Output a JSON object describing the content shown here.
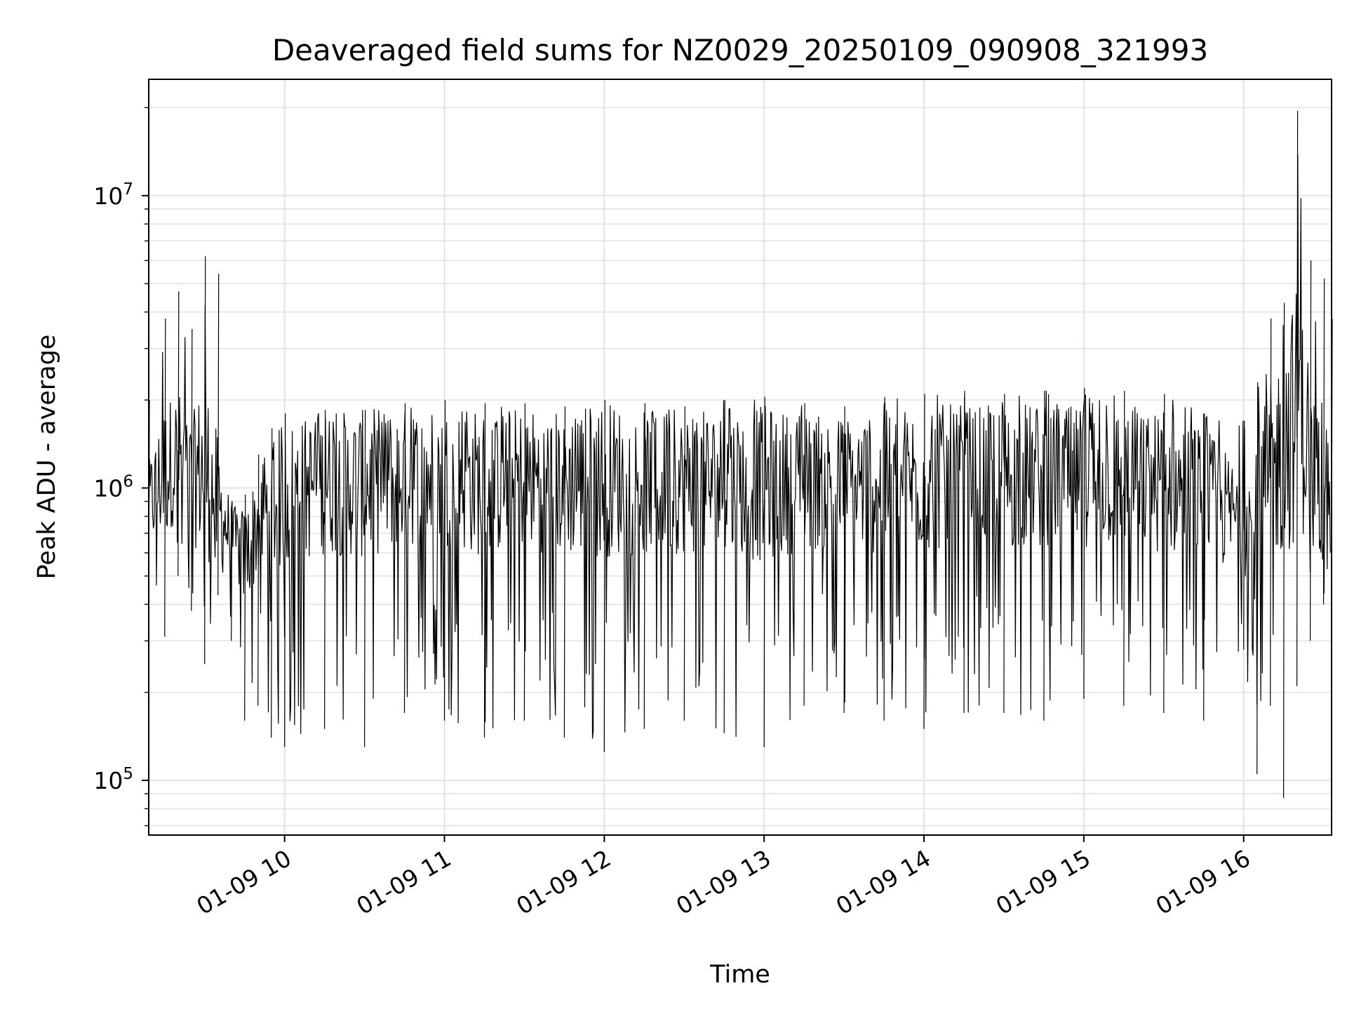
{
  "chart_data": {
    "type": "line",
    "title": "Deaveraged field sums for NZ0029_20250109_090908_321993",
    "xlabel": "Time",
    "ylabel": "Peak ADU - average",
    "y_scale": "log",
    "xlim": [
      "2025-01-09 09:09",
      "2025-01-09 16:33"
    ],
    "ylim": [
      65000,
      25000000
    ],
    "x_ticks": [
      {
        "value": "2025-01-09 10:00",
        "label": "01-09 10"
      },
      {
        "value": "2025-01-09 11:00",
        "label": "01-09 11"
      },
      {
        "value": "2025-01-09 12:00",
        "label": "01-09 12"
      },
      {
        "value": "2025-01-09 13:00",
        "label": "01-09 13"
      },
      {
        "value": "2025-01-09 14:00",
        "label": "01-09 14"
      },
      {
        "value": "2025-01-09 15:00",
        "label": "01-09 15"
      },
      {
        "value": "2025-01-09 16:00",
        "label": "01-09 16"
      }
    ],
    "y_ticks": [
      {
        "value": 100000,
        "base": "10",
        "exp": "5"
      },
      {
        "value": 1000000,
        "base": "10",
        "exp": "6"
      },
      {
        "value": 10000000,
        "base": "10",
        "exp": "7"
      }
    ],
    "grid": true,
    "line_color": "#000000",
    "grid_color": "#e3e3e3",
    "series": [
      {
        "x": [
          "2025-01-09 09:09",
          "2025-01-09 09:15",
          "2025-01-09 09:20",
          "2025-01-09 09:25",
          "2025-01-09 09:30",
          "2025-01-09 09:35",
          "2025-01-09 09:40",
          "2025-01-09 09:45",
          "2025-01-09 09:50",
          "2025-01-09 09:55",
          "2025-01-09 10:00",
          "2025-01-09 10:15",
          "2025-01-09 10:30",
          "2025-01-09 10:45",
          "2025-01-09 11:00",
          "2025-01-09 11:15",
          "2025-01-09 11:30",
          "2025-01-09 11:45",
          "2025-01-09 12:00",
          "2025-01-09 12:15",
          "2025-01-09 12:30",
          "2025-01-09 12:45",
          "2025-01-09 13:00",
          "2025-01-09 13:15",
          "2025-01-09 13:30",
          "2025-01-09 13:45",
          "2025-01-09 14:00",
          "2025-01-09 14:15",
          "2025-01-09 14:30",
          "2025-01-09 14:45",
          "2025-01-09 15:00",
          "2025-01-09 15:15",
          "2025-01-09 15:30",
          "2025-01-09 15:45",
          "2025-01-09 16:00",
          "2025-01-09 16:05",
          "2025-01-09 16:10",
          "2025-01-09 16:15",
          "2025-01-09 16:20",
          "2025-01-09 16:25",
          "2025-01-09 16:30",
          "2025-01-09 16:33"
        ],
        "ymin": [
          420000,
          310000,
          500000,
          380000,
          250000,
          430000,
          300000,
          160000,
          180000,
          140000,
          130000,
          150000,
          130000,
          170000,
          160000,
          140000,
          160000,
          140000,
          125000,
          150000,
          160000,
          145000,
          130000,
          180000,
          170000,
          160000,
          150000,
          170000,
          170000,
          160000,
          190000,
          180000,
          170000,
          160000,
          280000,
          105000,
          180000,
          87000,
          210000,
          300000,
          400000,
          580000
        ],
        "ymax": [
          2000000,
          3800000,
          4700000,
          3500000,
          6200000,
          5400000,
          900000,
          950000,
          1300000,
          1600000,
          1800000,
          1850000,
          1850000,
          1950000,
          2000000,
          1950000,
          1950000,
          1900000,
          2000000,
          1950000,
          1900000,
          2000000,
          2050000,
          1950000,
          1900000,
          2050000,
          2100000,
          2150000,
          2100000,
          2150000,
          2200000,
          2150000,
          2100000,
          1800000,
          1700000,
          2300000,
          3800000,
          4300000,
          19500000,
          6000000,
          5200000,
          3800000
        ],
        "y_typical": [
          900000,
          1200000,
          1400000,
          1100000,
          1300000,
          900000,
          700000,
          600000,
          800000,
          900000,
          1000000,
          1100000,
          1100000,
          1150000,
          1150000,
          1100000,
          1150000,
          1100000,
          1150000,
          1100000,
          1100000,
          1100000,
          1100000,
          1100000,
          1100000,
          1100000,
          1150000,
          1150000,
          1150000,
          1150000,
          1150000,
          1150000,
          1100000,
          1000000,
          800000,
          850000,
          1200000,
          1500000,
          2000000,
          1500000,
          1200000,
          900000
        ]
      }
    ]
  }
}
